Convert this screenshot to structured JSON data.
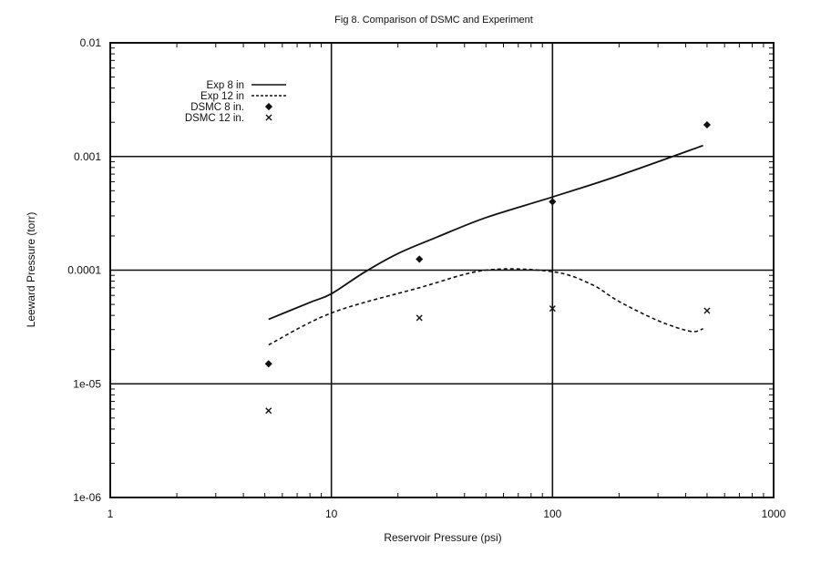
{
  "chart_data": {
    "type": "scatter",
    "title": "Fig 8. Comparison of DSMC and Experiment",
    "xlabel": "Reservoir Pressure (psi)",
    "ylabel": "Leeward Pressure (torr)",
    "x_scale": "log",
    "y_scale": "log",
    "xlim": [
      1,
      1000
    ],
    "ylim": [
      1e-06,
      0.01
    ],
    "x_ticks": [
      1,
      10,
      100,
      1000
    ],
    "x_tick_labels": [
      "1",
      "10",
      "100",
      "1000"
    ],
    "y_ticks": [
      1e-06,
      1e-05,
      0.0001,
      0.001,
      0.01
    ],
    "y_tick_labels": [
      "1e-06",
      "1e-05",
      "0.0001",
      "0.001",
      "0.01"
    ],
    "grid": "major gridlines at each decade",
    "legend_position": "top-left",
    "series": [
      {
        "name": "Exp 8 in",
        "kind": "line",
        "style": "solid",
        "x": [
          5.2,
          8,
          10,
          14,
          20,
          30,
          50,
          100,
          200,
          480
        ],
        "y": [
          3.7e-05,
          5.2e-05,
          6.2e-05,
          9.5e-05,
          0.00014,
          0.000195,
          0.00029,
          0.00044,
          0.00068,
          0.00125
        ]
      },
      {
        "name": "Exp 12 in",
        "kind": "line",
        "style": "dashed",
        "x": [
          5.2,
          10,
          25,
          50,
          100,
          150,
          200,
          300,
          420,
          480
        ],
        "y": [
          2.2e-05,
          4.2e-05,
          7e-05,
          0.0001,
          9.7e-05,
          7.5e-05,
          5.3e-05,
          3.6e-05,
          2.9e-05,
          3.05e-05
        ]
      },
      {
        "name": "DSMC 8 in.",
        "kind": "markers",
        "marker": "diamond",
        "x": [
          5.2,
          25,
          100,
          500
        ],
        "y": [
          1.5e-05,
          0.000125,
          0.0004,
          0.0019
        ]
      },
      {
        "name": "DSMC 12 in.",
        "kind": "markers",
        "marker": "x",
        "x": [
          5.2,
          25,
          100,
          500
        ],
        "y": [
          5.8e-06,
          3.8e-05,
          4.6e-05,
          4.4e-05
        ]
      }
    ]
  }
}
